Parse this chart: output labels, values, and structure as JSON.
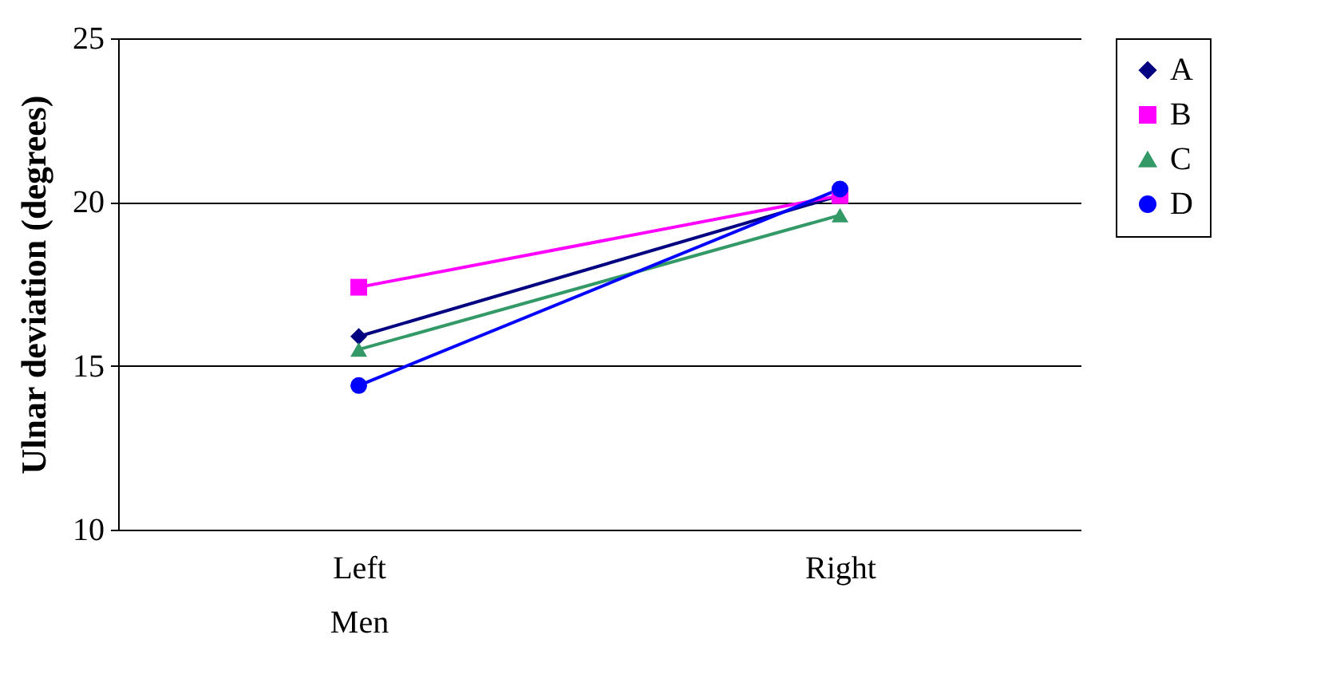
{
  "chart_data": {
    "type": "line",
    "ylabel": "Ulnar deviation (degrees)",
    "categories": [
      "Left Men",
      "Right"
    ],
    "series": [
      {
        "name": "A",
        "color": "#000080",
        "marker": "diamond",
        "values": [
          15.9,
          20.2
        ]
      },
      {
        "name": "B",
        "color": "#ff00ff",
        "marker": "square",
        "values": [
          17.4,
          20.2
        ]
      },
      {
        "name": "C",
        "color": "#339966",
        "marker": "triangle",
        "values": [
          15.5,
          19.6
        ]
      },
      {
        "name": "D",
        "color": "#0000ff",
        "marker": "circle",
        "values": [
          14.4,
          20.4
        ]
      }
    ],
    "ylim": [
      10,
      25
    ],
    "yticks": [
      10,
      15,
      20,
      25
    ],
    "grid": "y",
    "legend": "right"
  }
}
